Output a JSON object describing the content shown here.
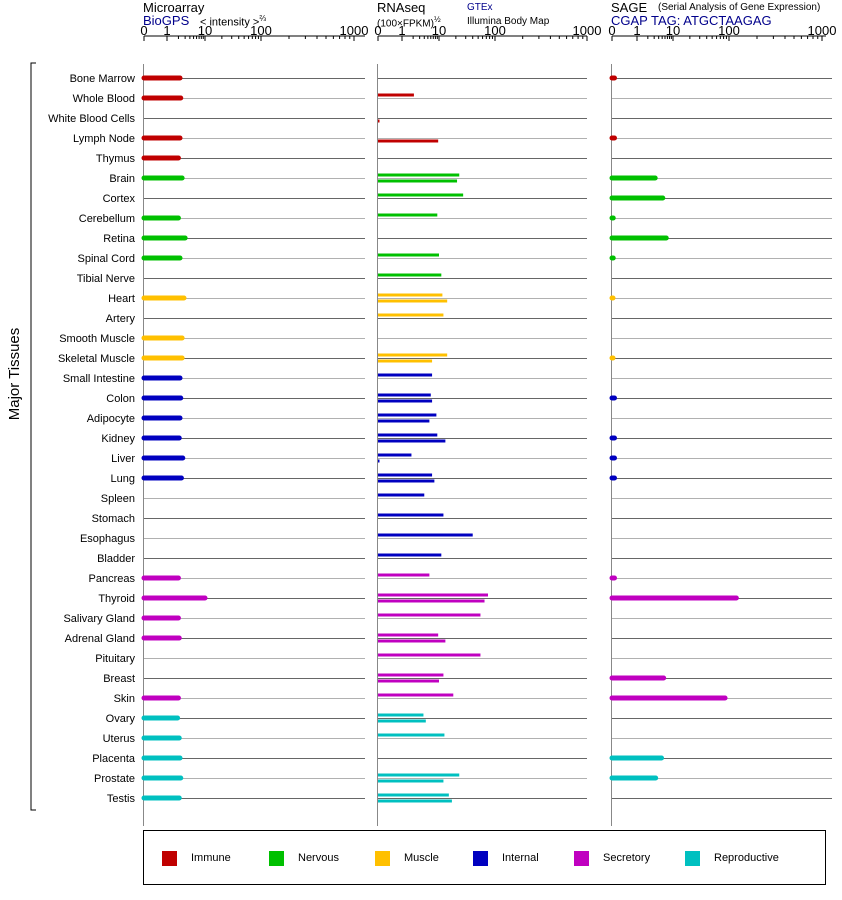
{
  "header": {
    "microarray_title": "Microarray",
    "microarray_source": "BioGPS",
    "microarray_unit": "< intensity >",
    "microarray_unit_exp": "⅔",
    "rnaseq_title": "RNAseq",
    "rnaseq_unit": "(100×FPKM)",
    "rnaseq_unit_exp": "½",
    "rnaseq_gtex": "GTEx",
    "rnaseq_ibm": "Illumina Body Map",
    "sage_title": "SAGE",
    "sage_subtitle": "(Serial Analysis of Gene Expression)",
    "sage_tag": "CGAP TAG: ATGCTAAGAG"
  },
  "colors": {
    "Immune": "#c00000",
    "Nervous": "#00c000",
    "Muscle": "#ffc000",
    "Internal": "#0000c0",
    "Secretory": "#c000c0",
    "Reproductive": "#00c0c0"
  },
  "legend": [
    "Immune",
    "Nervous",
    "Muscle",
    "Internal",
    "Secretory",
    "Reproductive"
  ],
  "chart_data": {
    "type": "bar",
    "orientation": "horizontal",
    "group_label": "Major Tissues",
    "x_ticks": [
      "0",
      "1",
      "10",
      "100",
      "1000"
    ],
    "xlim": [
      0,
      1000
    ],
    "tissues": [
      {
        "name": "Bone Marrow",
        "group": "Immune",
        "micro": 2.2,
        "gtex": null,
        "ibm": null,
        "sage": 0.1
      },
      {
        "name": "Whole Blood",
        "group": "Immune",
        "micro": 2.3,
        "gtex": 2.1,
        "ibm": null,
        "sage": null
      },
      {
        "name": "White Blood Cells",
        "group": "Immune",
        "micro": null,
        "gtex": null,
        "ibm": 0.05,
        "sage": null
      },
      {
        "name": "Lymph Node",
        "group": "Immune",
        "micro": 2.2,
        "gtex": null,
        "ibm": 9.5,
        "sage": 0.1
      },
      {
        "name": "Thymus",
        "group": "Immune",
        "micro": 2.0,
        "gtex": null,
        "ibm": null,
        "sage": null
      },
      {
        "name": "Brain",
        "group": "Nervous",
        "micro": 2.5,
        "gtex": 23,
        "ibm": 21,
        "sage": 3.2
      },
      {
        "name": "Cortex",
        "group": "Nervous",
        "micro": null,
        "gtex": 27,
        "ibm": null,
        "sage": 5.2
      },
      {
        "name": "Cerebellum",
        "group": "Nervous",
        "micro": 2.0,
        "gtex": 9,
        "ibm": null,
        "sage": 0.05
      },
      {
        "name": "Retina",
        "group": "Nervous",
        "micro": 3.0,
        "gtex": null,
        "ibm": null,
        "sage": 6.5
      },
      {
        "name": "Spinal Cord",
        "group": "Nervous",
        "micro": 2.2,
        "gtex": 10,
        "ibm": null,
        "sage": 0.05
      },
      {
        "name": "Tibial Nerve",
        "group": "Nervous",
        "micro": null,
        "gtex": 11,
        "ibm": null,
        "sage": null
      },
      {
        "name": "Heart",
        "group": "Muscle",
        "micro": 2.8,
        "gtex": 11.5,
        "ibm": 14,
        "sage": 0.02
      },
      {
        "name": "Artery",
        "group": "Muscle",
        "micro": null,
        "gtex": 12,
        "ibm": null,
        "sage": null
      },
      {
        "name": "Smooth Muscle",
        "group": "Muscle",
        "micro": 2.5,
        "gtex": null,
        "ibm": null,
        "sage": null
      },
      {
        "name": "Skeletal Muscle",
        "group": "Muscle",
        "micro": 2.5,
        "gtex": 14,
        "ibm": 6.5,
        "sage": 0.02
      },
      {
        "name": "Small Intestine",
        "group": "Internal",
        "micro": 2.2,
        "gtex": 6.5,
        "ibm": null,
        "sage": null
      },
      {
        "name": "Colon",
        "group": "Internal",
        "micro": 2.3,
        "gtex": 6,
        "ibm": 6.5,
        "sage": 0.1
      },
      {
        "name": "Adipocyte",
        "group": "Internal",
        "micro": 2.2,
        "gtex": 8.5,
        "ibm": 5.5,
        "sage": null
      },
      {
        "name": "Kidney",
        "group": "Internal",
        "micro": 2.1,
        "gtex": 9,
        "ibm": 13,
        "sage": 0.1
      },
      {
        "name": "Liver",
        "group": "Internal",
        "micro": 2.6,
        "gtex": 1.8,
        "ibm": 0.05,
        "sage": 0.1
      },
      {
        "name": "Lung",
        "group": "Internal",
        "micro": 2.4,
        "gtex": 6.5,
        "ibm": 7.5,
        "sage": 0.1
      },
      {
        "name": "Spleen",
        "group": "Internal",
        "micro": null,
        "gtex": 4,
        "ibm": null,
        "sage": null
      },
      {
        "name": "Stomach",
        "group": "Internal",
        "micro": null,
        "gtex": 12,
        "ibm": null,
        "sage": null
      },
      {
        "name": "Esophagus",
        "group": "Internal",
        "micro": null,
        "gtex": 40,
        "ibm": null,
        "sage": null
      },
      {
        "name": "Bladder",
        "group": "Internal",
        "micro": null,
        "gtex": 11,
        "ibm": null,
        "sage": null
      },
      {
        "name": "Pancreas",
        "group": "Secretory",
        "micro": 2.0,
        "gtex": 5.5,
        "ibm": null,
        "sage": 0.1
      },
      {
        "name": "Thyroid",
        "group": "Secretory",
        "micro": 10,
        "gtex": 75,
        "ibm": 65,
        "sage": 120
      },
      {
        "name": "Salivary Gland",
        "group": "Secretory",
        "micro": 2.0,
        "gtex": 55,
        "ibm": null,
        "sage": null
      },
      {
        "name": "Adrenal Gland",
        "group": "Secretory",
        "micro": 2.1,
        "gtex": 9.5,
        "ibm": 13,
        "sage": null
      },
      {
        "name": "Pituitary",
        "group": "Secretory",
        "micro": null,
        "gtex": 55,
        "ibm": null,
        "sage": null
      },
      {
        "name": "Breast",
        "group": "Secretory",
        "micro": null,
        "gtex": 12,
        "ibm": 10,
        "sage": 5.5
      },
      {
        "name": "Skin",
        "group": "Secretory",
        "micro": 2.0,
        "gtex": 18,
        "ibm": null,
        "sage": 85
      },
      {
        "name": "Ovary",
        "group": "Reproductive",
        "micro": 1.9,
        "gtex": 3.8,
        "ibm": 4.4,
        "sage": null
      },
      {
        "name": "Uterus",
        "group": "Reproductive",
        "micro": 2.1,
        "gtex": 12.5,
        "ibm": null,
        "sage": null
      },
      {
        "name": "Placenta",
        "group": "Reproductive",
        "micro": 2.2,
        "gtex": null,
        "ibm": null,
        "sage": 4.8
      },
      {
        "name": "Prostate",
        "group": "Reproductive",
        "micro": 2.3,
        "gtex": 23,
        "ibm": 12,
        "sage": 3.3
      },
      {
        "name": "Testis",
        "group": "Reproductive",
        "micro": 2.1,
        "gtex": 15,
        "ibm": 17,
        "sage": null
      }
    ]
  }
}
